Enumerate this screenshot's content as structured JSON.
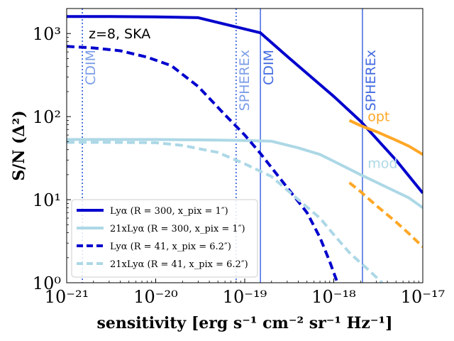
{
  "chart_data": {
    "type": "line",
    "xscale": "log",
    "yscale": "log",
    "xlim": [
      1e-21,
      1e-17
    ],
    "ylim": [
      1,
      2000
    ],
    "xlabel": "sensitivity [erg s⁻¹ cm⁻² sr⁻¹ Hz⁻¹]",
    "ylabel": "S/N (Δ²)",
    "annotation": "z=8, SKA",
    "x_ticks": [
      {
        "value": 1e-21,
        "label": "10⁻²¹"
      },
      {
        "value": 1e-20,
        "label": "10⁻²⁰"
      },
      {
        "value": 1e-19,
        "label": "10⁻¹⁹"
      },
      {
        "value": 1e-18,
        "label": "10⁻¹⁸"
      },
      {
        "value": 1e-17,
        "label": "10⁻¹⁷"
      }
    ],
    "y_ticks": [
      {
        "value": 1,
        "label": "10⁰"
      },
      {
        "value": 10,
        "label": "10¹"
      },
      {
        "value": 100,
        "label": "10²"
      },
      {
        "value": 1000,
        "label": "10³"
      }
    ],
    "series": [
      {
        "name": "Lyα (R = 300, x_pix = 1″)",
        "color": "#0000cd",
        "style": "solid",
        "in_legend": true,
        "x": [
          1e-21,
          3e-21,
          1e-20,
          3e-20,
          1.5e-19,
          3e-19,
          1e-18,
          2e-18,
          5e-18,
          1e-17
        ],
        "y": [
          1600,
          1600,
          1590,
          1550,
          1020,
          530,
          175,
          88,
          30,
          12
        ]
      },
      {
        "name": "21xLyα (R = 300, x_pix = 1″)",
        "color": "#add8e6",
        "style": "solid",
        "in_legend": true,
        "x": [
          1e-21,
          3e-21,
          1e-20,
          3e-20,
          1e-19,
          2e-19,
          4e-19,
          7e-19,
          1e-18,
          2e-18,
          4e-18,
          7e-18,
          1e-17
        ],
        "y": [
          53,
          53,
          53,
          52.5,
          51.5,
          50.5,
          42,
          35,
          29,
          20,
          14,
          10.5,
          8
        ]
      },
      {
        "name": "Lyα (R = 41, x_pix = 6.2″)",
        "color": "#0000cd",
        "style": "dashed",
        "in_legend": true,
        "x": [
          1e-21,
          2e-21,
          4e-21,
          8e-21,
          1.5e-20,
          3e-20,
          6e-20,
          1e-19,
          1.5e-19,
          3e-19,
          5e-19,
          7e-19,
          9e-19,
          1.1e-18
        ],
        "y": [
          700,
          670,
          620,
          520,
          410,
          230,
          105,
          60,
          36,
          14,
          7,
          3.5,
          1.8,
          1
        ]
      },
      {
        "name": "21xLyα (R = 41, x_pix = 6.2″)",
        "color": "#add8e6",
        "style": "dashed",
        "in_legend": true,
        "x": [
          1e-21,
          3e-21,
          1e-20,
          2e-20,
          5e-20,
          1e-19,
          2e-19,
          4e-19,
          7e-19,
          1e-18,
          1.5e-18,
          2.5e-18,
          3.5e-18
        ],
        "y": [
          49,
          49,
          48.5,
          45,
          37,
          27,
          19,
          10,
          6,
          3.8,
          2.3,
          1.4,
          1
        ]
      },
      {
        "name": "opt",
        "color": "#ffa726",
        "style": "solid",
        "in_legend": false,
        "x": [
          1.5e-18,
          2e-18,
          3e-18,
          5e-18,
          7e-18,
          1e-17
        ],
        "y": [
          90,
          78,
          66,
          52,
          44,
          35
        ]
      },
      {
        "name": "mod",
        "color": "#ffa726",
        "style": "dashed",
        "in_legend": false,
        "x": [
          1.5e-18,
          2e-18,
          3e-18,
          5e-18,
          7e-18,
          1e-17
        ],
        "y": [
          16,
          12.5,
          8.5,
          5.4,
          3.9,
          2.7
        ]
      }
    ],
    "vertical_lines": [
      {
        "x": 1.5e-21,
        "label": "CDIM",
        "color": "#4169e1",
        "style": "dotted",
        "text_color": "#7b9de8"
      },
      {
        "x": 8e-20,
        "label": "SPHEREx",
        "color": "#4169e1",
        "style": "dotted",
        "text_color": "#7b9de8"
      },
      {
        "x": 1.5e-19,
        "label": "CDIM",
        "color": "#4169e1",
        "style": "solid",
        "text_color": "#4169e1"
      },
      {
        "x": 2.1e-18,
        "label": "SPHEREx",
        "color": "#4169e1",
        "style": "solid",
        "text_color": "#4169e1"
      }
    ],
    "text_labels": [
      {
        "text": "opt",
        "color": "#ffa726",
        "x": 2.4e-18,
        "y": 88
      },
      {
        "text": "mod",
        "color": "#add8e6",
        "x": 2.4e-18,
        "y": 24
      }
    ]
  }
}
